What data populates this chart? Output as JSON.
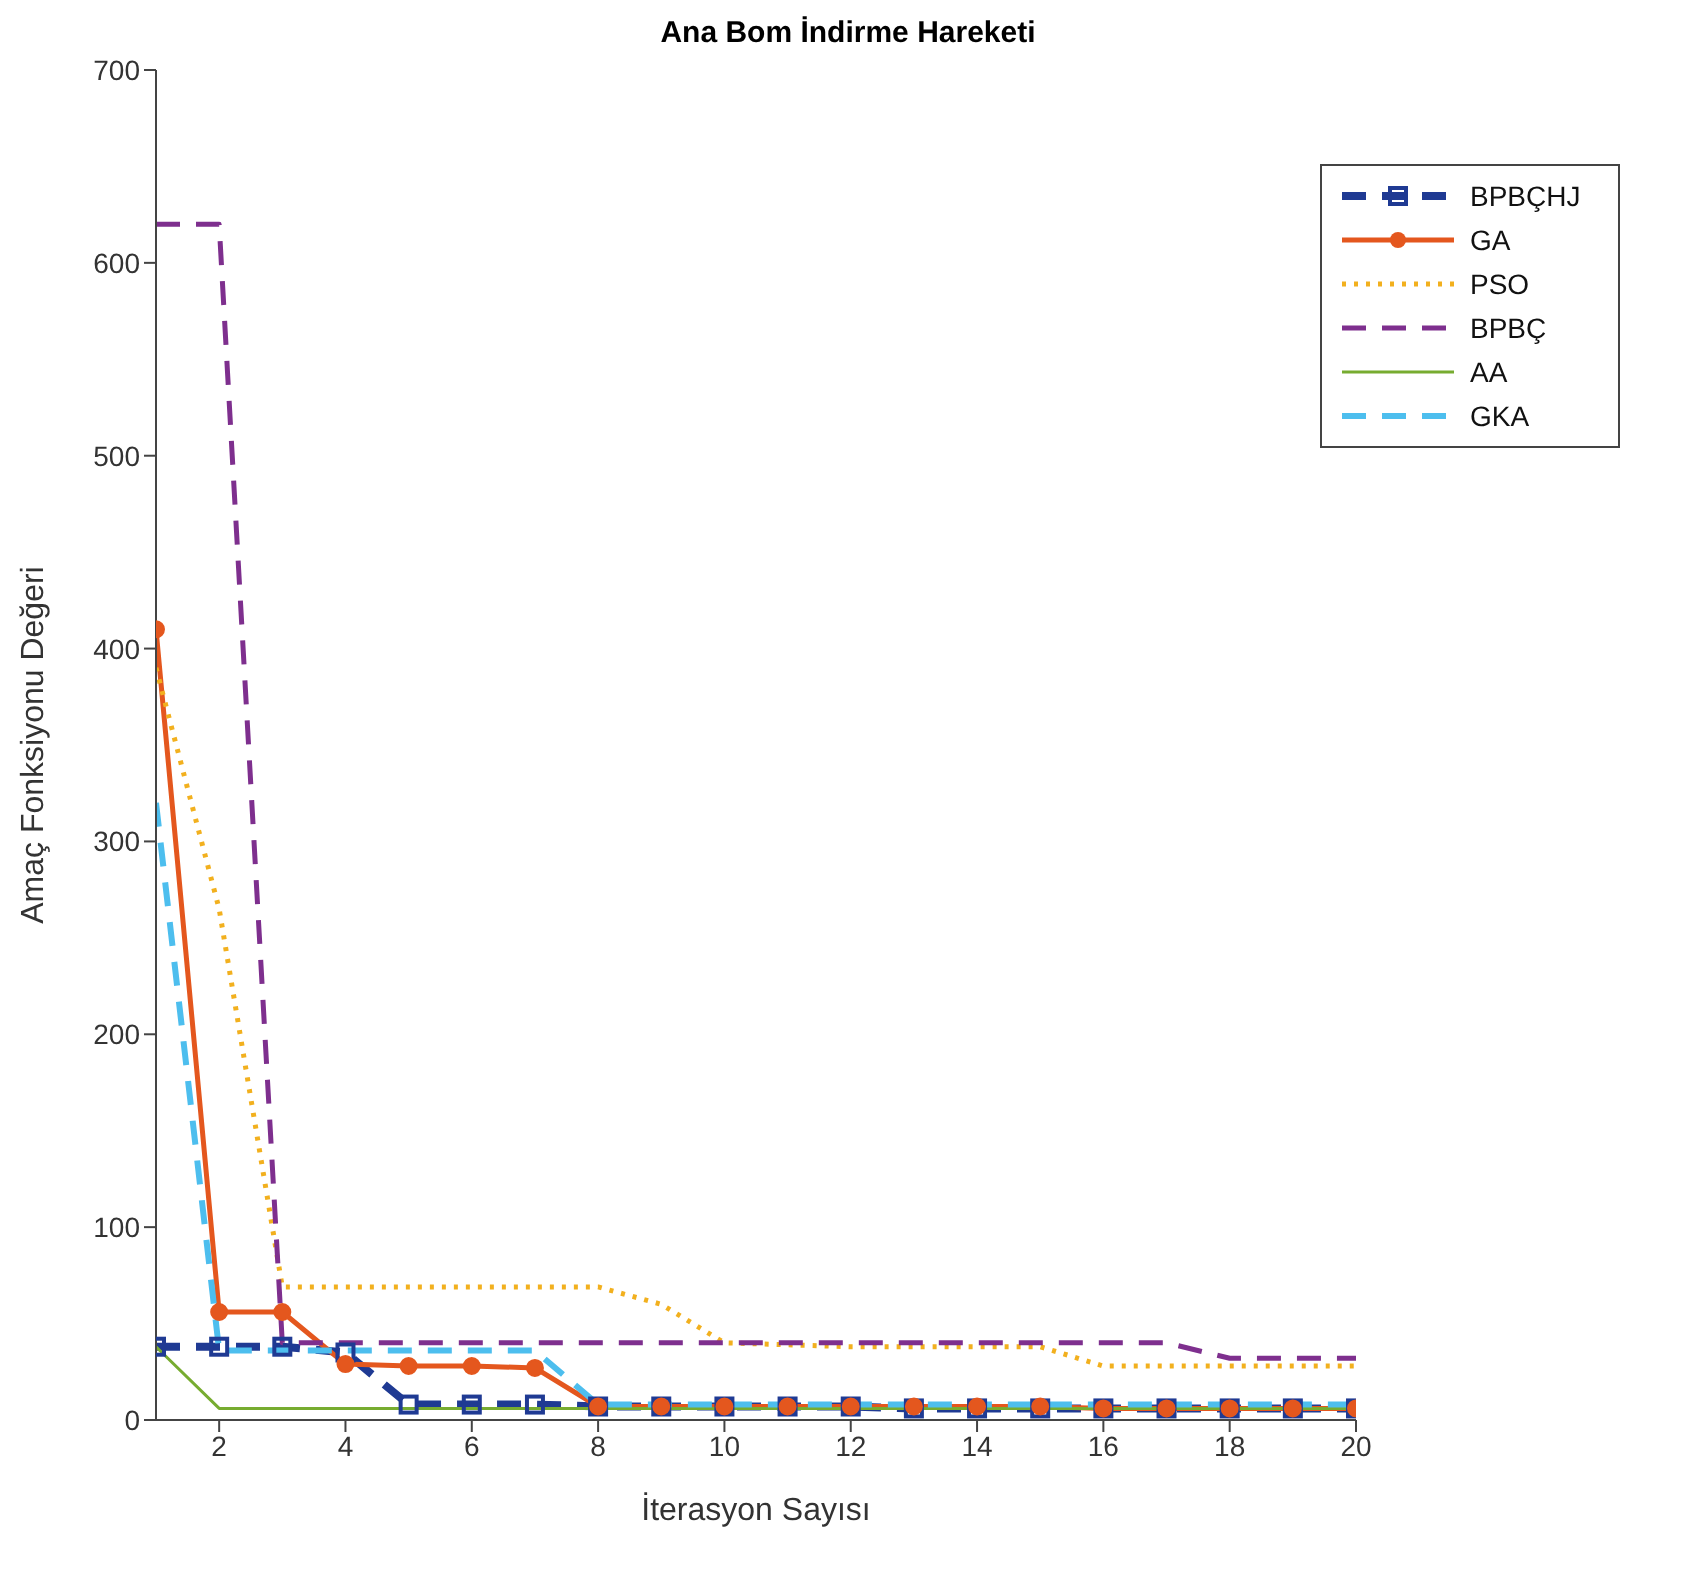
{
  "chart_data": {
    "type": "line",
    "title": "Ana Bom İndirme Hareketi",
    "xlabel": "İterasyon Sayısı",
    "ylabel": "Amaç Fonksiyonu Değeri",
    "x": [
      1,
      2,
      3,
      4,
      5,
      6,
      7,
      8,
      9,
      10,
      11,
      12,
      13,
      14,
      15,
      16,
      17,
      18,
      19,
      20
    ],
    "xlim": [
      1,
      20
    ],
    "xticks": [
      2,
      4,
      6,
      8,
      10,
      12,
      14,
      16,
      18,
      20
    ],
    "ylim": [
      0,
      700
    ],
    "yticks": [
      0,
      100,
      200,
      300,
      400,
      500,
      600,
      700
    ],
    "legend": "top right",
    "series": [
      {
        "name": "BPBÇHJ",
        "color": "#1f3a93",
        "marker": "square",
        "line_style": "dashed",
        "values": [
          38,
          38,
          38,
          35,
          8,
          8,
          8,
          7,
          7,
          7,
          7,
          7,
          6,
          6,
          6,
          6,
          6,
          6,
          6,
          6
        ]
      },
      {
        "name": "GA",
        "color": "#e4571e",
        "marker": "circle",
        "line_style": "solid",
        "values": [
          410,
          56,
          56,
          29,
          28,
          28,
          27,
          7,
          7,
          7,
          7,
          7,
          7,
          7,
          7,
          6,
          6,
          6,
          6,
          6
        ]
      },
      {
        "name": "PSO",
        "color": "#f2b01e",
        "marker": "none",
        "line_style": "dotted",
        "values": [
          390,
          265,
          69,
          69,
          69,
          69,
          69,
          69,
          60,
          40,
          39,
          38,
          38,
          38,
          38,
          28,
          28,
          28,
          28,
          28
        ]
      },
      {
        "name": "BPBÇ",
        "color": "#7e2f8e",
        "marker": "none",
        "line_style": "dashed",
        "values": [
          620,
          620,
          40,
          40,
          40,
          40,
          40,
          40,
          40,
          40,
          40,
          40,
          40,
          40,
          40,
          40,
          40,
          32,
          32,
          32
        ]
      },
      {
        "name": "AA",
        "color": "#77ac30",
        "marker": "none",
        "line_style": "solid",
        "values": [
          38,
          6,
          6,
          6,
          6,
          6,
          6,
          6,
          6,
          6,
          6,
          6,
          6,
          6,
          6,
          6,
          6,
          6,
          6,
          6
        ]
      },
      {
        "name": "GKA",
        "color": "#4dbeee",
        "marker": "none",
        "line_style": "dashed",
        "values": [
          320,
          36,
          36,
          36,
          36,
          36,
          36,
          8,
          8,
          8,
          8,
          8,
          8,
          8,
          8,
          8,
          8,
          8,
          8,
          8
        ]
      }
    ]
  }
}
